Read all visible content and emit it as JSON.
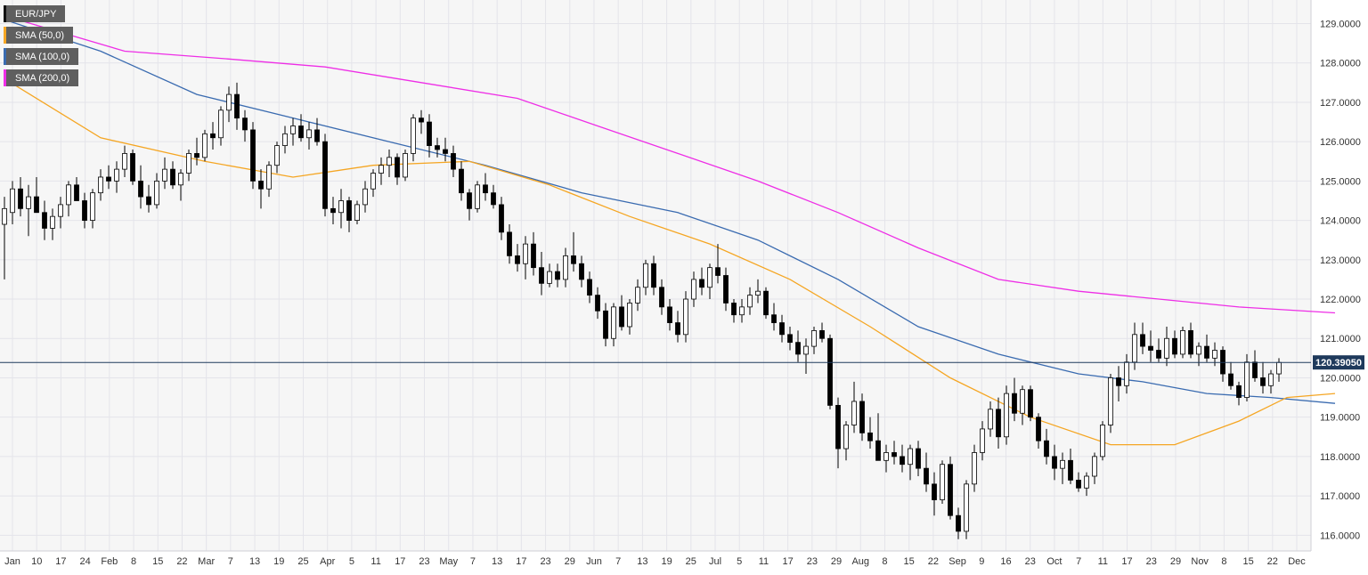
{
  "colors": {
    "background": "#f6f6f6",
    "grid": "#e4e4ea",
    "candle_up": "#ffffff",
    "candle_down": "#000000",
    "wick": "#000000",
    "sma50": "#f5a623",
    "sma100": "#3a6bb0",
    "sma200": "#ee2ee6",
    "price_line": "#1f3a5c",
    "price_tag": "#1f3a5c",
    "legend_bg": "#5f5f5f",
    "axis_text": "#333333"
  },
  "legend": [
    {
      "label": "EUR/JPY",
      "color": "#111111"
    },
    {
      "label": "SMA (50,0)",
      "color": "#f5a623"
    },
    {
      "label": "SMA (100,0)",
      "color": "#3a6bb0"
    },
    {
      "label": "SMA (200,0)",
      "color": "#ee2ee6"
    }
  ],
  "last_price_label": "120.39050",
  "chart_data": {
    "type": "candlestick",
    "y_ticks": [
      "116.0000",
      "117.0000",
      "118.0000",
      "119.0000",
      "120.0000",
      "121.0000",
      "122.0000",
      "123.0000",
      "124.0000",
      "125.0000",
      "126.0000",
      "127.0000",
      "128.0000",
      "129.0000"
    ],
    "ylim": [
      115.6,
      129.6
    ],
    "x_ticks": [
      "Jan",
      "10",
      "17",
      "24",
      "Feb",
      "8",
      "15",
      "22",
      "Mar",
      "7",
      "13",
      "19",
      "25",
      "Apr",
      "5",
      "11",
      "17",
      "23",
      "May",
      "7",
      "13",
      "17",
      "23",
      "29",
      "Jun",
      "7",
      "13",
      "19",
      "25",
      "Jul",
      "5",
      "11",
      "17",
      "23",
      "29",
      "Aug",
      "8",
      "15",
      "22",
      "Sep",
      "9",
      "16",
      "23",
      "Oct",
      "7",
      "11",
      "17",
      "23",
      "29",
      "Nov",
      "8",
      "15",
      "22",
      "Dec"
    ],
    "last_price": 120.3905,
    "ohlc": [
      [
        123.9,
        124.6,
        122.5,
        124.3
      ],
      [
        124.2,
        125.0,
        123.9,
        124.8
      ],
      [
        124.8,
        125.1,
        124.1,
        124.3
      ],
      [
        124.3,
        124.9,
        123.6,
        124.6
      ],
      [
        124.6,
        125.1,
        124.2,
        124.2
      ],
      [
        124.2,
        124.5,
        123.5,
        123.8
      ],
      [
        123.8,
        124.3,
        123.5,
        124.1
      ],
      [
        124.1,
        124.6,
        123.8,
        124.4
      ],
      [
        124.4,
        125.0,
        124.1,
        124.9
      ],
      [
        124.9,
        125.1,
        124.5,
        124.5
      ],
      [
        124.5,
        124.7,
        123.8,
        124.0
      ],
      [
        124.0,
        124.8,
        123.8,
        124.7
      ],
      [
        124.7,
        125.3,
        124.5,
        125.1
      ],
      [
        125.1,
        125.4,
        124.8,
        125.0
      ],
      [
        125.0,
        125.5,
        124.7,
        125.3
      ],
      [
        125.3,
        125.9,
        125.1,
        125.7
      ],
      [
        125.7,
        125.8,
        124.9,
        125.0
      ],
      [
        125.0,
        125.4,
        124.3,
        124.6
      ],
      [
        124.6,
        124.9,
        124.2,
        124.4
      ],
      [
        124.4,
        125.2,
        124.3,
        125.0
      ],
      [
        125.0,
        125.6,
        124.8,
        125.3
      ],
      [
        125.3,
        125.5,
        124.8,
        124.9
      ],
      [
        124.9,
        125.3,
        124.5,
        125.2
      ],
      [
        125.2,
        125.8,
        125.0,
        125.7
      ],
      [
        125.7,
        126.1,
        125.4,
        125.6
      ],
      [
        125.6,
        126.3,
        125.5,
        126.2
      ],
      [
        126.2,
        126.5,
        125.8,
        126.1
      ],
      [
        126.1,
        126.9,
        125.9,
        126.8
      ],
      [
        126.8,
        127.4,
        126.5,
        127.2
      ],
      [
        127.2,
        127.5,
        126.3,
        126.6
      ],
      [
        126.6,
        126.8,
        126.0,
        126.3
      ],
      [
        126.3,
        126.5,
        124.8,
        125.0
      ],
      [
        125.0,
        125.3,
        124.3,
        124.8
      ],
      [
        124.8,
        125.5,
        124.6,
        125.4
      ],
      [
        125.4,
        126.0,
        125.2,
        125.9
      ],
      [
        125.9,
        126.4,
        125.7,
        126.2
      ],
      [
        126.2,
        126.6,
        125.9,
        126.4
      ],
      [
        126.4,
        126.7,
        126.0,
        126.1
      ],
      [
        126.1,
        126.5,
        125.8,
        126.3
      ],
      [
        126.3,
        126.6,
        125.9,
        126.0
      ],
      [
        126.0,
        126.2,
        124.1,
        124.3
      ],
      [
        124.3,
        124.6,
        123.9,
        124.2
      ],
      [
        124.2,
        124.8,
        123.8,
        124.5
      ],
      [
        124.5,
        124.6,
        123.7,
        124.0
      ],
      [
        124.0,
        124.5,
        123.9,
        124.4
      ],
      [
        124.4,
        125.0,
        124.2,
        124.8
      ],
      [
        124.8,
        125.3,
        124.6,
        125.2
      ],
      [
        125.2,
        125.6,
        124.9,
        125.4
      ],
      [
        125.4,
        125.8,
        125.1,
        125.6
      ],
      [
        125.6,
        125.7,
        124.9,
        125.1
      ],
      [
        125.1,
        125.8,
        125.0,
        125.7
      ],
      [
        125.7,
        126.7,
        125.5,
        126.6
      ],
      [
        126.6,
        126.8,
        126.2,
        126.5
      ],
      [
        126.5,
        126.7,
        125.6,
        125.9
      ],
      [
        125.9,
        126.1,
        125.6,
        125.8
      ],
      [
        125.8,
        126.1,
        125.5,
        125.7
      ],
      [
        125.7,
        125.9,
        125.1,
        125.3
      ],
      [
        125.3,
        125.5,
        124.5,
        124.7
      ],
      [
        124.7,
        124.8,
        124.0,
        124.3
      ],
      [
        124.3,
        125.0,
        124.2,
        124.9
      ],
      [
        124.9,
        125.2,
        124.5,
        124.7
      ],
      [
        124.7,
        124.9,
        124.3,
        124.4
      ],
      [
        124.4,
        124.6,
        123.5,
        123.7
      ],
      [
        123.7,
        123.9,
        122.9,
        123.1
      ],
      [
        123.1,
        123.4,
        122.7,
        122.9
      ],
      [
        122.9,
        123.6,
        122.5,
        123.4
      ],
      [
        123.4,
        123.7,
        122.6,
        122.8
      ],
      [
        122.8,
        123.2,
        122.1,
        122.4
      ],
      [
        122.4,
        122.9,
        122.3,
        122.7
      ],
      [
        122.7,
        122.9,
        122.3,
        122.5
      ],
      [
        122.5,
        123.3,
        122.3,
        123.1
      ],
      [
        123.1,
        123.7,
        122.7,
        122.9
      ],
      [
        122.9,
        123.1,
        122.3,
        122.5
      ],
      [
        122.5,
        122.7,
        121.9,
        122.1
      ],
      [
        122.1,
        122.3,
        121.5,
        121.7
      ],
      [
        121.7,
        121.9,
        120.8,
        121.0
      ],
      [
        121.0,
        121.9,
        120.8,
        121.8
      ],
      [
        121.8,
        122.1,
        121.2,
        121.3
      ],
      [
        121.3,
        122.0,
        121.1,
        121.9
      ],
      [
        121.9,
        122.5,
        121.7,
        122.3
      ],
      [
        122.3,
        123.0,
        122.1,
        122.9
      ],
      [
        122.9,
        123.1,
        122.1,
        122.3
      ],
      [
        122.3,
        122.5,
        121.6,
        121.8
      ],
      [
        121.8,
        122.0,
        121.2,
        121.4
      ],
      [
        121.4,
        121.7,
        120.9,
        121.1
      ],
      [
        121.1,
        122.2,
        120.9,
        122.0
      ],
      [
        122.0,
        122.7,
        121.8,
        122.5
      ],
      [
        122.5,
        122.8,
        122.1,
        122.3
      ],
      [
        122.3,
        122.9,
        122.0,
        122.8
      ],
      [
        122.8,
        123.4,
        122.4,
        122.6
      ],
      [
        122.6,
        122.8,
        121.7,
        121.9
      ],
      [
        121.9,
        122.0,
        121.4,
        121.6
      ],
      [
        121.6,
        122.0,
        121.4,
        121.8
      ],
      [
        121.8,
        122.3,
        121.6,
        122.1
      ],
      [
        122.1,
        122.5,
        121.9,
        122.2
      ],
      [
        122.2,
        122.3,
        121.5,
        121.6
      ],
      [
        121.6,
        121.9,
        121.2,
        121.4
      ],
      [
        121.4,
        121.6,
        120.9,
        121.1
      ],
      [
        121.1,
        121.3,
        120.7,
        120.9
      ],
      [
        120.9,
        121.2,
        120.4,
        120.6
      ],
      [
        120.6,
        121.0,
        120.1,
        120.8
      ],
      [
        120.8,
        121.3,
        120.6,
        121.2
      ],
      [
        121.2,
        121.4,
        120.9,
        121.0
      ],
      [
        121.0,
        121.1,
        119.2,
        119.3
      ],
      [
        119.3,
        119.5,
        117.7,
        118.2
      ],
      [
        118.2,
        118.9,
        117.9,
        118.8
      ],
      [
        118.8,
        119.9,
        118.6,
        119.4
      ],
      [
        119.4,
        119.6,
        118.4,
        118.6
      ],
      [
        118.6,
        119.0,
        118.2,
        118.4
      ],
      [
        118.4,
        119.1,
        117.9,
        117.9
      ],
      [
        117.9,
        118.3,
        117.6,
        118.1
      ],
      [
        118.1,
        118.4,
        117.8,
        118.0
      ],
      [
        118.0,
        118.3,
        117.6,
        117.8
      ],
      [
        117.8,
        118.3,
        117.4,
        118.2
      ],
      [
        118.2,
        118.4,
        117.5,
        117.7
      ],
      [
        117.7,
        118.1,
        117.1,
        117.3
      ],
      [
        117.3,
        117.6,
        116.5,
        116.9
      ],
      [
        116.9,
        117.9,
        116.8,
        117.8
      ],
      [
        117.8,
        118.0,
        116.4,
        116.5
      ],
      [
        116.5,
        116.7,
        115.9,
        116.1
      ],
      [
        116.1,
        117.4,
        115.9,
        117.3
      ],
      [
        117.3,
        118.3,
        117.1,
        118.1
      ],
      [
        118.1,
        118.9,
        117.9,
        118.7
      ],
      [
        118.7,
        119.4,
        118.5,
        119.2
      ],
      [
        119.2,
        119.5,
        118.2,
        118.5
      ],
      [
        118.5,
        119.8,
        118.3,
        119.6
      ],
      [
        119.6,
        120.0,
        118.9,
        119.1
      ],
      [
        119.1,
        119.8,
        118.8,
        119.7
      ],
      [
        119.7,
        119.8,
        118.9,
        119.0
      ],
      [
        119.0,
        119.1,
        118.2,
        118.4
      ],
      [
        118.4,
        118.7,
        117.8,
        118.0
      ],
      [
        118.0,
        118.3,
        117.4,
        117.7
      ],
      [
        117.7,
        118.1,
        117.3,
        117.9
      ],
      [
        117.9,
        118.2,
        117.3,
        117.4
      ],
      [
        117.4,
        117.6,
        117.1,
        117.2
      ],
      [
        117.2,
        117.6,
        117.0,
        117.5
      ],
      [
        117.5,
        118.1,
        117.3,
        118.0
      ],
      [
        118.0,
        118.9,
        117.9,
        118.8
      ],
      [
        118.8,
        120.1,
        118.6,
        120.0
      ],
      [
        120.0,
        120.3,
        119.4,
        119.8
      ],
      [
        119.8,
        120.6,
        119.6,
        120.4
      ],
      [
        120.4,
        121.4,
        120.2,
        121.1
      ],
      [
        121.1,
        121.4,
        120.6,
        120.8
      ],
      [
        120.8,
        121.2,
        120.4,
        120.7
      ],
      [
        120.7,
        121.0,
        120.4,
        120.5
      ],
      [
        120.5,
        121.3,
        120.3,
        121.0
      ],
      [
        121.0,
        121.2,
        120.5,
        120.6
      ],
      [
        120.6,
        121.3,
        120.5,
        121.2
      ],
      [
        121.2,
        121.4,
        120.5,
        120.6
      ],
      [
        120.6,
        120.9,
        120.3,
        120.8
      ],
      [
        120.8,
        121.1,
        120.4,
        120.5
      ],
      [
        120.5,
        120.9,
        120.3,
        120.7
      ],
      [
        120.7,
        120.8,
        119.9,
        120.1
      ],
      [
        120.1,
        120.4,
        119.7,
        119.8
      ],
      [
        119.8,
        119.9,
        119.3,
        119.5
      ],
      [
        119.5,
        120.6,
        119.4,
        120.4
      ],
      [
        120.4,
        120.7,
        119.9,
        120.0
      ],
      [
        120.0,
        120.4,
        119.6,
        119.8
      ],
      [
        119.8,
        120.2,
        119.6,
        120.1
      ],
      [
        120.1,
        120.5,
        119.9,
        120.39
      ]
    ],
    "sma50": [
      [
        0,
        127.6
      ],
      [
        12,
        126.1
      ],
      [
        25,
        125.5
      ],
      [
        36,
        125.1
      ],
      [
        46,
        125.4
      ],
      [
        58,
        125.5
      ],
      [
        68,
        124.9
      ],
      [
        78,
        124.1
      ],
      [
        88,
        123.4
      ],
      [
        98,
        122.5
      ],
      [
        108,
        121.3
      ],
      [
        118,
        120.0
      ],
      [
        128,
        119.0
      ],
      [
        138,
        118.3
      ],
      [
        146,
        118.3
      ],
      [
        154,
        118.9
      ],
      [
        160,
        119.5
      ],
      [
        166,
        119.6
      ]
    ],
    "sma100": [
      [
        0,
        129.1
      ],
      [
        12,
        128.3
      ],
      [
        24,
        127.2
      ],
      [
        36,
        126.6
      ],
      [
        48,
        126.0
      ],
      [
        60,
        125.4
      ],
      [
        72,
        124.7
      ],
      [
        84,
        124.2
      ],
      [
        94,
        123.5
      ],
      [
        104,
        122.5
      ],
      [
        114,
        121.3
      ],
      [
        124,
        120.6
      ],
      [
        134,
        120.1
      ],
      [
        142,
        119.9
      ],
      [
        150,
        119.6
      ],
      [
        158,
        119.5
      ],
      [
        166,
        119.35
      ]
    ],
    "sma200": [
      [
        0,
        129.2
      ],
      [
        15,
        128.3
      ],
      [
        28,
        128.1
      ],
      [
        40,
        127.9
      ],
      [
        52,
        127.5
      ],
      [
        64,
        127.1
      ],
      [
        74,
        126.4
      ],
      [
        84,
        125.7
      ],
      [
        94,
        125.0
      ],
      [
        104,
        124.2
      ],
      [
        114,
        123.3
      ],
      [
        124,
        122.5
      ],
      [
        134,
        122.2
      ],
      [
        144,
        122.0
      ],
      [
        154,
        121.8
      ],
      [
        166,
        121.65
      ]
    ]
  }
}
